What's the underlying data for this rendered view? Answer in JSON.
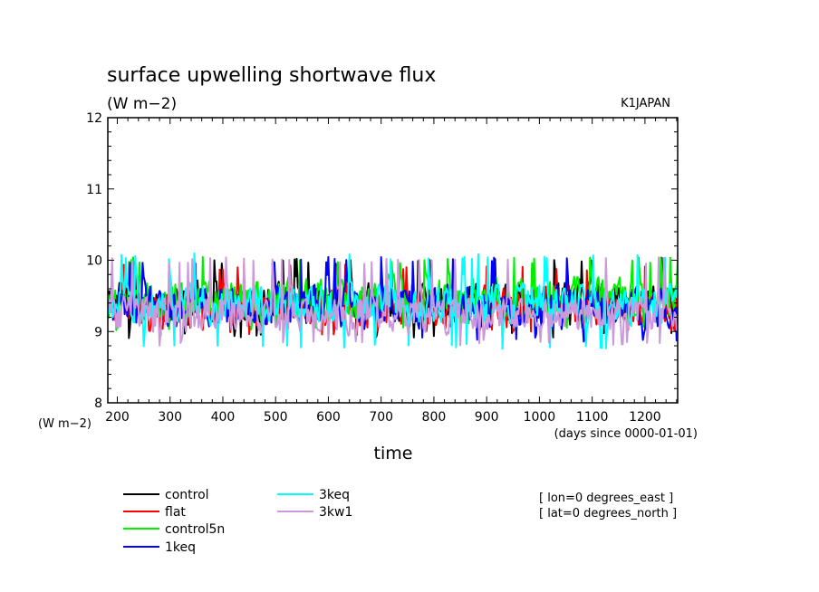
{
  "chart_data": {
    "type": "line",
    "title": "surface upwelling shortwave flux",
    "units_label": "(W m−2)",
    "dataset_label": "K1JAPAN",
    "xlabel": "time",
    "x_units_label": "(days since 0000-01-01)",
    "y_units_label": "(W m−2)",
    "xlim": [
      182,
      1262
    ],
    "ylim": [
      8,
      12
    ],
    "x_ticks": [
      200,
      300,
      400,
      500,
      600,
      700,
      800,
      900,
      1000,
      1100,
      1200
    ],
    "y_ticks": [
      8,
      9,
      10,
      11,
      12
    ],
    "x_tick_labels": [
      "200",
      "300",
      "400",
      "500",
      "600",
      "700",
      "800",
      "900",
      "1000",
      "1100",
      "1200"
    ],
    "y_tick_labels": [
      "8",
      "9",
      "10",
      "11",
      "12"
    ],
    "annotations": [
      "[ lon=0 degrees_east ]",
      "[ lat=0 degrees_north ]"
    ],
    "series": [
      {
        "name": "control",
        "color": "#000000",
        "base": 9.35,
        "amp": 0.38,
        "min": 8.9,
        "max": 10.05,
        "seed": 11
      },
      {
        "name": "flat",
        "color": "#ff0000",
        "base": 9.3,
        "amp": 0.36,
        "min": 8.95,
        "max": 9.95,
        "seed": 23
      },
      {
        "name": "control5n",
        "color": "#00ee00",
        "base": 9.4,
        "amp": 0.4,
        "min": 9.0,
        "max": 10.05,
        "seed": 37
      },
      {
        "name": "1keq",
        "color": "#0000ff",
        "base": 9.3,
        "amp": 0.38,
        "min": 8.85,
        "max": 10.05,
        "seed": 41
      },
      {
        "name": "3keq",
        "color": "#00ffff",
        "base": 9.35,
        "amp": 0.36,
        "min": 8.75,
        "max": 10.1,
        "seed": 53
      },
      {
        "name": "3kw1",
        "color": "#cc99dd",
        "base": 9.2,
        "amp": 0.34,
        "min": 8.8,
        "max": 10.05,
        "seed": 67
      }
    ]
  }
}
